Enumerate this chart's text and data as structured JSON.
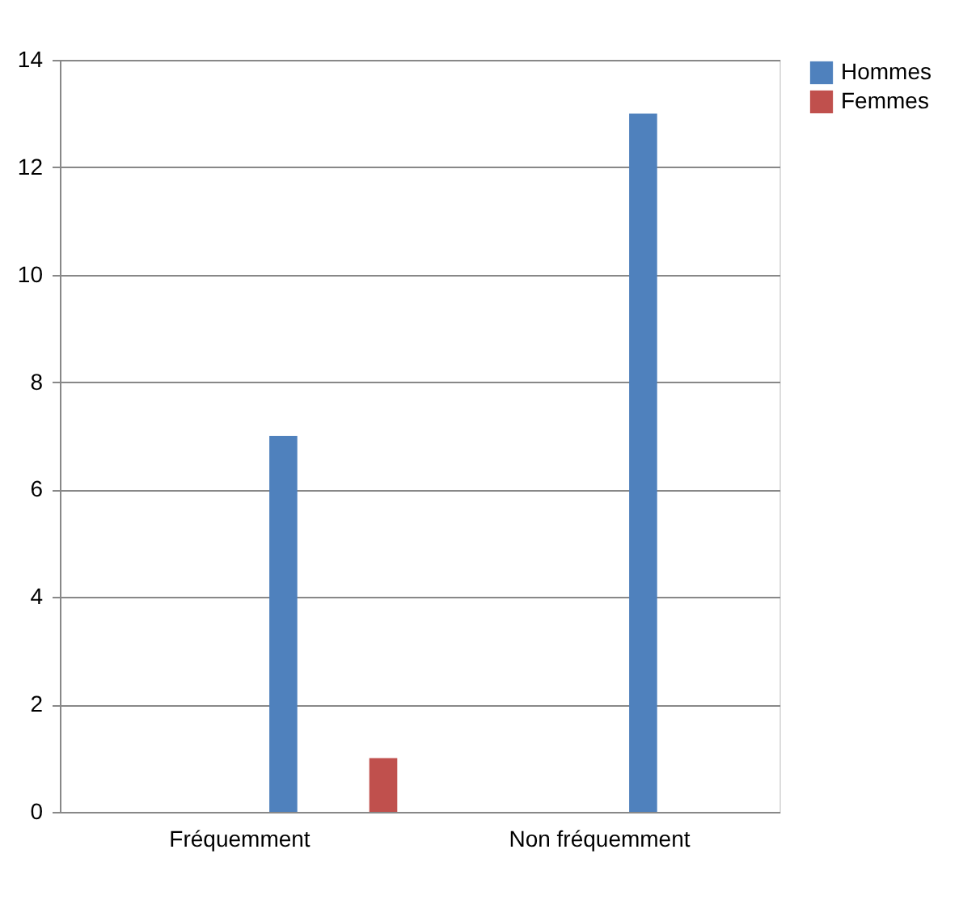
{
  "chart_data": {
    "type": "bar",
    "categories": [
      "Fréquemment",
      "Non fréquemment"
    ],
    "series": [
      {
        "name": "Hommes",
        "color": "#4f81bd",
        "values": [
          7,
          13
        ]
      },
      {
        "name": "Femmes",
        "color": "#c0504d",
        "values": [
          1,
          0
        ]
      }
    ],
    "ylim": [
      0,
      14
    ],
    "yticks": [
      0,
      2,
      4,
      6,
      8,
      10,
      12,
      14
    ],
    "grid": "y",
    "legend": "right"
  }
}
